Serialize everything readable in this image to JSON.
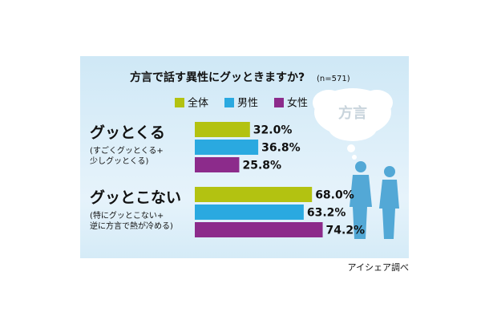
{
  "chart_data": {
    "type": "bar",
    "orientation": "horizontal",
    "title": "方言で話す異性にグッときますか?",
    "subtitle": "(n=571)",
    "categories": [
      "グッとくる",
      "グッとこない"
    ],
    "category_notes": [
      [
        "(すごくグッとくる+",
        "少しグッとくる)"
      ],
      [
        "(特にグッとこない+",
        "逆に方言で熱が冷める)"
      ]
    ],
    "series": [
      {
        "name": "全体",
        "color": "#b3c211",
        "values": [
          32.0,
          68.0
        ],
        "value_labels": [
          "32.0%",
          "68.0%"
        ]
      },
      {
        "name": "男性",
        "color": "#2aa9e0",
        "values": [
          36.8,
          63.2
        ],
        "value_labels": [
          "36.8%",
          "63.2%"
        ]
      },
      {
        "name": "女性",
        "color": "#8c2b8b",
        "values": [
          25.8,
          74.2
        ],
        "value_labels": [
          "25.8%",
          "74.2%"
        ]
      }
    ],
    "annotation": "方言",
    "source": "アイシェア調べ"
  }
}
